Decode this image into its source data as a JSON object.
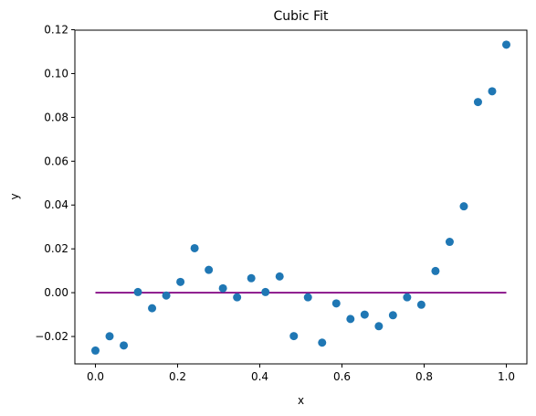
{
  "chart_data": {
    "type": "scatter",
    "title": "Cubic Fit",
    "xlabel": "x",
    "ylabel": "y",
    "xlim": [
      -0.05,
      1.05
    ],
    "ylim": [
      -0.0325,
      0.1198
    ],
    "grid": false,
    "xticks": [
      0.0,
      0.2,
      0.4,
      0.6,
      0.8,
      1.0
    ],
    "xtick_labels": [
      "0.0",
      "0.2",
      "0.4",
      "0.6",
      "0.8",
      "1.0"
    ],
    "yticks": [
      -0.02,
      0.0,
      0.02,
      0.04,
      0.06,
      0.08,
      0.1,
      0.12
    ],
    "ytick_labels": [
      "−0.02",
      "0.00",
      "0.02",
      "0.04",
      "0.06",
      "0.08",
      "0.10",
      "0.12"
    ],
    "series": [
      {
        "kind": "scatter",
        "color": "#1f77b4",
        "x": [
          0.0,
          0.0345,
          0.069,
          0.1034,
          0.1379,
          0.1724,
          0.2069,
          0.2414,
          0.2759,
          0.3103,
          0.3448,
          0.3793,
          0.4138,
          0.4483,
          0.4828,
          0.5172,
          0.5517,
          0.5862,
          0.6207,
          0.6552,
          0.6897,
          0.7241,
          0.7586,
          0.7931,
          0.8276,
          0.8621,
          0.8966,
          0.931,
          0.9655,
          1.0
        ],
        "y": [
          -0.0264,
          -0.0199,
          -0.0241,
          0.0003,
          -0.0071,
          -0.0013,
          0.0049,
          0.0203,
          0.0104,
          0.002,
          -0.0021,
          0.0066,
          0.0003,
          0.0074,
          -0.0198,
          -0.0021,
          -0.0228,
          -0.0049,
          -0.012,
          -0.01,
          -0.0153,
          -0.0103,
          -0.0021,
          -0.0055,
          0.0099,
          0.0232,
          0.0394,
          0.087,
          0.0919,
          0.1132
        ]
      },
      {
        "kind": "line",
        "color": "#800080",
        "x": [
          0.0,
          1.0
        ],
        "y": [
          0.0,
          0.0
        ]
      }
    ]
  }
}
